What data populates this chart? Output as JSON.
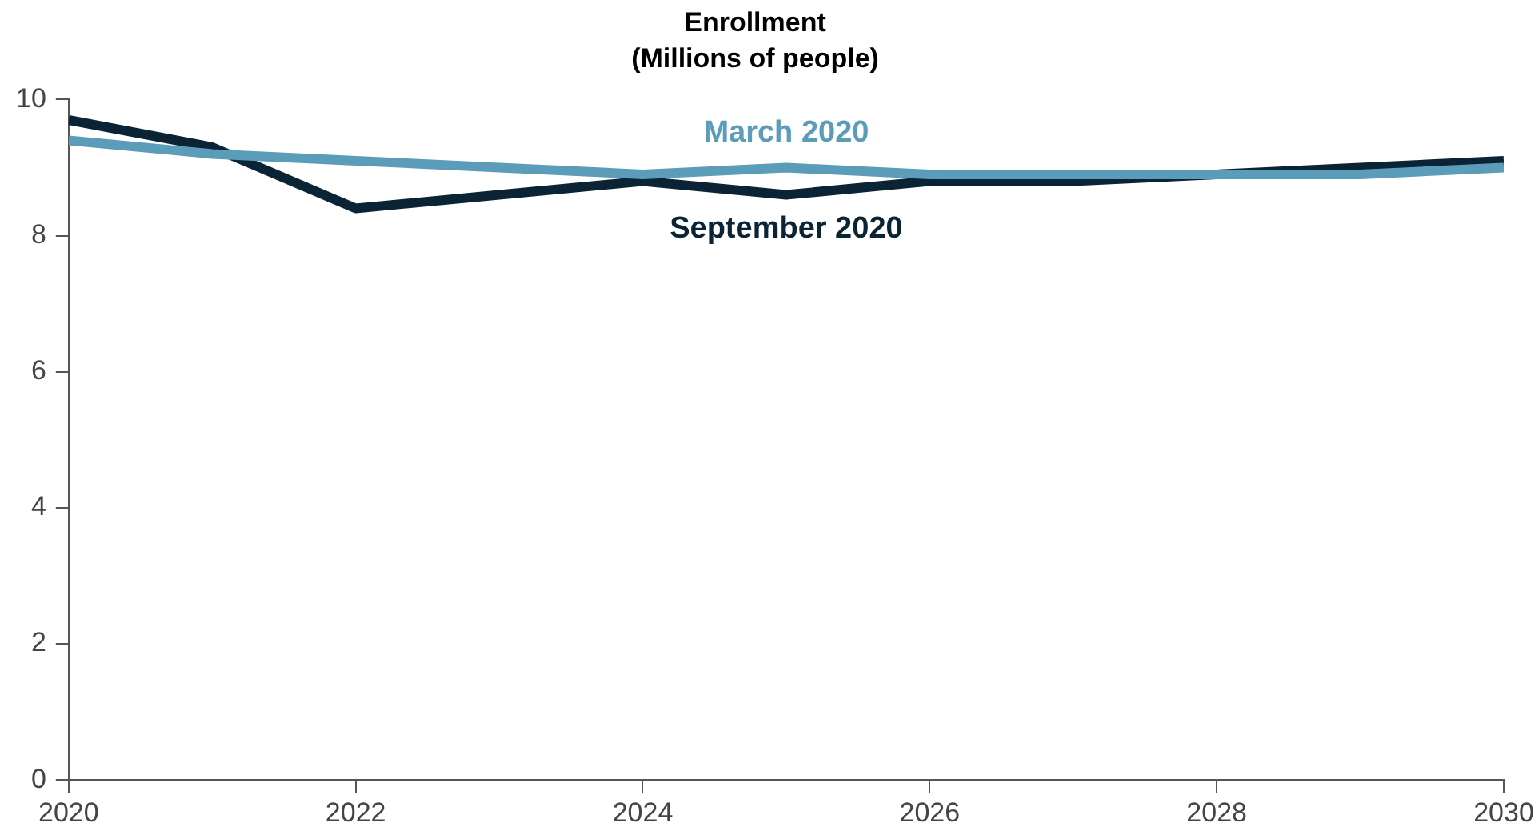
{
  "chart_data": {
    "type": "line",
    "title": "Enrollment\n(Millions of people)",
    "x": [
      2020,
      2021,
      2022,
      2023,
      2024,
      2025,
      2026,
      2027,
      2028,
      2029,
      2030
    ],
    "series": [
      {
        "name": "March 2020",
        "color": "#5b9db8",
        "values": [
          9.4,
          9.2,
          9.1,
          9.0,
          8.9,
          9.0,
          8.9,
          8.9,
          8.9,
          8.9,
          9.0
        ]
      },
      {
        "name": "September 2020",
        "color": "#0b2435",
        "values": [
          9.7,
          9.3,
          8.4,
          8.6,
          8.8,
          8.6,
          8.8,
          8.8,
          8.9,
          9.0,
          9.1
        ]
      }
    ],
    "xlim": [
      2020,
      2030
    ],
    "xticks": [
      2020,
      2022,
      2024,
      2026,
      2028,
      2030
    ],
    "ylim": [
      0,
      10
    ],
    "yticks": [
      0,
      2,
      4,
      6,
      8,
      10
    ],
    "grid": false,
    "legend": false,
    "marker": "none",
    "line_style": "solid"
  }
}
